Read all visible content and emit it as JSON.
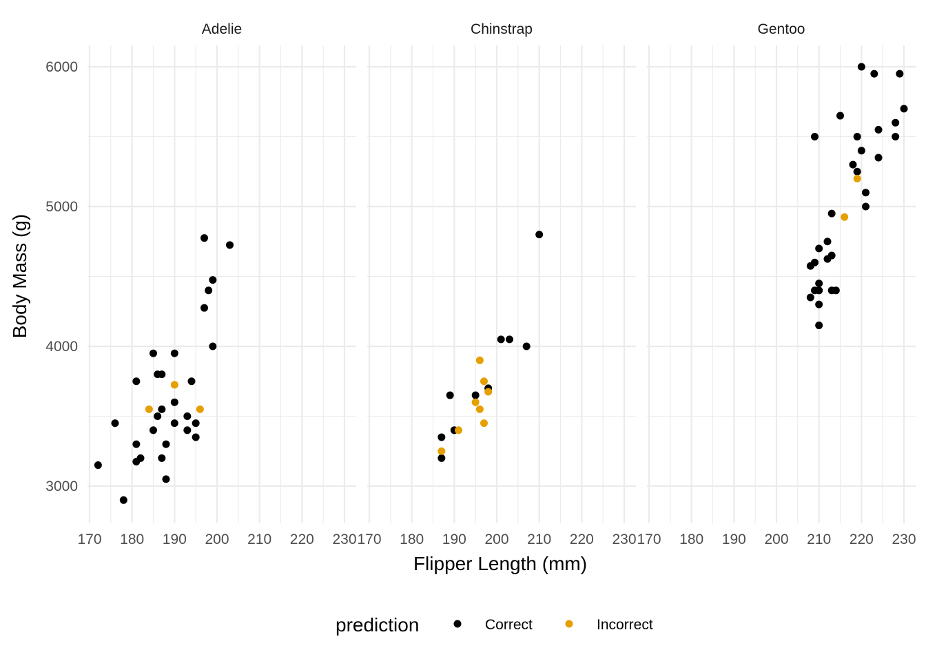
{
  "chart_data": {
    "type": "scatter",
    "facet_by": "species",
    "facets": [
      "Adelie",
      "Chinstrap",
      "Gentoo"
    ],
    "xlabel": "Flipper Length (mm)",
    "ylabel": "Body Mass (g)",
    "xlim": [
      170,
      230
    ],
    "ylim": [
      3000,
      6000
    ],
    "x_ticks": [
      170,
      180,
      190,
      200,
      210,
      220,
      230
    ],
    "y_ticks": [
      3000,
      4000,
      5000,
      6000
    ],
    "grid": true,
    "legend": {
      "title": "prediction",
      "position": "bottom",
      "entries": [
        {
          "name": "Correct",
          "color": "#000000"
        },
        {
          "name": "Incorrect",
          "color": "#E69F00"
        }
      ]
    },
    "series": [
      {
        "name": "Correct",
        "color": "#000000",
        "points": [
          {
            "facet": "Adelie",
            "x": 172,
            "y": 3150
          },
          {
            "facet": "Adelie",
            "x": 176,
            "y": 3450
          },
          {
            "facet": "Adelie",
            "x": 178,
            "y": 2900
          },
          {
            "facet": "Adelie",
            "x": 181,
            "y": 3750
          },
          {
            "facet": "Adelie",
            "x": 181,
            "y": 3300
          },
          {
            "facet": "Adelie",
            "x": 181,
            "y": 3175
          },
          {
            "facet": "Adelie",
            "x": 182,
            "y": 3200
          },
          {
            "facet": "Adelie",
            "x": 185,
            "y": 3950
          },
          {
            "facet": "Adelie",
            "x": 185,
            "y": 3400
          },
          {
            "facet": "Adelie",
            "x": 186,
            "y": 3800
          },
          {
            "facet": "Adelie",
            "x": 186,
            "y": 3500
          },
          {
            "facet": "Adelie",
            "x": 187,
            "y": 3800
          },
          {
            "facet": "Adelie",
            "x": 187,
            "y": 3550
          },
          {
            "facet": "Adelie",
            "x": 187,
            "y": 3200
          },
          {
            "facet": "Adelie",
            "x": 188,
            "y": 3300
          },
          {
            "facet": "Adelie",
            "x": 188,
            "y": 3050
          },
          {
            "facet": "Adelie",
            "x": 190,
            "y": 3950
          },
          {
            "facet": "Adelie",
            "x": 190,
            "y": 3600
          },
          {
            "facet": "Adelie",
            "x": 190,
            "y": 3450
          },
          {
            "facet": "Adelie",
            "x": 193,
            "y": 3500
          },
          {
            "facet": "Adelie",
            "x": 193,
            "y": 3400
          },
          {
            "facet": "Adelie",
            "x": 194,
            "y": 3750
          },
          {
            "facet": "Adelie",
            "x": 195,
            "y": 3450
          },
          {
            "facet": "Adelie",
            "x": 195,
            "y": 3350
          },
          {
            "facet": "Adelie",
            "x": 197,
            "y": 4775
          },
          {
            "facet": "Adelie",
            "x": 197,
            "y": 4275
          },
          {
            "facet": "Adelie",
            "x": 198,
            "y": 4400
          },
          {
            "facet": "Adelie",
            "x": 199,
            "y": 4475
          },
          {
            "facet": "Adelie",
            "x": 199,
            "y": 4000
          },
          {
            "facet": "Adelie",
            "x": 203,
            "y": 4725
          },
          {
            "facet": "Chinstrap",
            "x": 187,
            "y": 3350
          },
          {
            "facet": "Chinstrap",
            "x": 187,
            "y": 3200
          },
          {
            "facet": "Chinstrap",
            "x": 189,
            "y": 3650
          },
          {
            "facet": "Chinstrap",
            "x": 190,
            "y": 3400
          },
          {
            "facet": "Chinstrap",
            "x": 195,
            "y": 3650
          },
          {
            "facet": "Chinstrap",
            "x": 198,
            "y": 3700
          },
          {
            "facet": "Chinstrap",
            "x": 201,
            "y": 4050
          },
          {
            "facet": "Chinstrap",
            "x": 203,
            "y": 4050
          },
          {
            "facet": "Chinstrap",
            "x": 207,
            "y": 4000
          },
          {
            "facet": "Chinstrap",
            "x": 210,
            "y": 4800
          },
          {
            "facet": "Gentoo",
            "x": 208,
            "y": 4575
          },
          {
            "facet": "Gentoo",
            "x": 208,
            "y": 4350
          },
          {
            "facet": "Gentoo",
            "x": 209,
            "y": 5500
          },
          {
            "facet": "Gentoo",
            "x": 209,
            "y": 4600
          },
          {
            "facet": "Gentoo",
            "x": 209,
            "y": 4400
          },
          {
            "facet": "Gentoo",
            "x": 210,
            "y": 4700
          },
          {
            "facet": "Gentoo",
            "x": 210,
            "y": 4450
          },
          {
            "facet": "Gentoo",
            "x": 210,
            "y": 4400
          },
          {
            "facet": "Gentoo",
            "x": 210,
            "y": 4300
          },
          {
            "facet": "Gentoo",
            "x": 210,
            "y": 4150
          },
          {
            "facet": "Gentoo",
            "x": 212,
            "y": 4750
          },
          {
            "facet": "Gentoo",
            "x": 212,
            "y": 4625
          },
          {
            "facet": "Gentoo",
            "x": 213,
            "y": 4950
          },
          {
            "facet": "Gentoo",
            "x": 213,
            "y": 4650
          },
          {
            "facet": "Gentoo",
            "x": 213,
            "y": 4400
          },
          {
            "facet": "Gentoo",
            "x": 214,
            "y": 4400
          },
          {
            "facet": "Gentoo",
            "x": 215,
            "y": 5650
          },
          {
            "facet": "Gentoo",
            "x": 218,
            "y": 5300
          },
          {
            "facet": "Gentoo",
            "x": 219,
            "y": 5500
          },
          {
            "facet": "Gentoo",
            "x": 219,
            "y": 5250
          },
          {
            "facet": "Gentoo",
            "x": 220,
            "y": 6000
          },
          {
            "facet": "Gentoo",
            "x": 220,
            "y": 5400
          },
          {
            "facet": "Gentoo",
            "x": 221,
            "y": 5100
          },
          {
            "facet": "Gentoo",
            "x": 221,
            "y": 5000
          },
          {
            "facet": "Gentoo",
            "x": 223,
            "y": 5950
          },
          {
            "facet": "Gentoo",
            "x": 224,
            "y": 5550
          },
          {
            "facet": "Gentoo",
            "x": 224,
            "y": 5350
          },
          {
            "facet": "Gentoo",
            "x": 228,
            "y": 5600
          },
          {
            "facet": "Gentoo",
            "x": 228,
            "y": 5500
          },
          {
            "facet": "Gentoo",
            "x": 229,
            "y": 5950
          },
          {
            "facet": "Gentoo",
            "x": 230,
            "y": 5700
          }
        ]
      },
      {
        "name": "Incorrect",
        "color": "#E69F00",
        "points": [
          {
            "facet": "Adelie",
            "x": 184,
            "y": 3550
          },
          {
            "facet": "Adelie",
            "x": 190,
            "y": 3725
          },
          {
            "facet": "Adelie",
            "x": 196,
            "y": 3550
          },
          {
            "facet": "Chinstrap",
            "x": 187,
            "y": 3250
          },
          {
            "facet": "Chinstrap",
            "x": 191,
            "y": 3400
          },
          {
            "facet": "Chinstrap",
            "x": 195,
            "y": 3600
          },
          {
            "facet": "Chinstrap",
            "x": 196,
            "y": 3900
          },
          {
            "facet": "Chinstrap",
            "x": 196,
            "y": 3550
          },
          {
            "facet": "Chinstrap",
            "x": 197,
            "y": 3750
          },
          {
            "facet": "Chinstrap",
            "x": 197,
            "y": 3450
          },
          {
            "facet": "Chinstrap",
            "x": 198,
            "y": 3675
          },
          {
            "facet": "Gentoo",
            "x": 216,
            "y": 4925
          },
          {
            "facet": "Gentoo",
            "x": 219,
            "y": 5200
          }
        ]
      }
    ]
  }
}
